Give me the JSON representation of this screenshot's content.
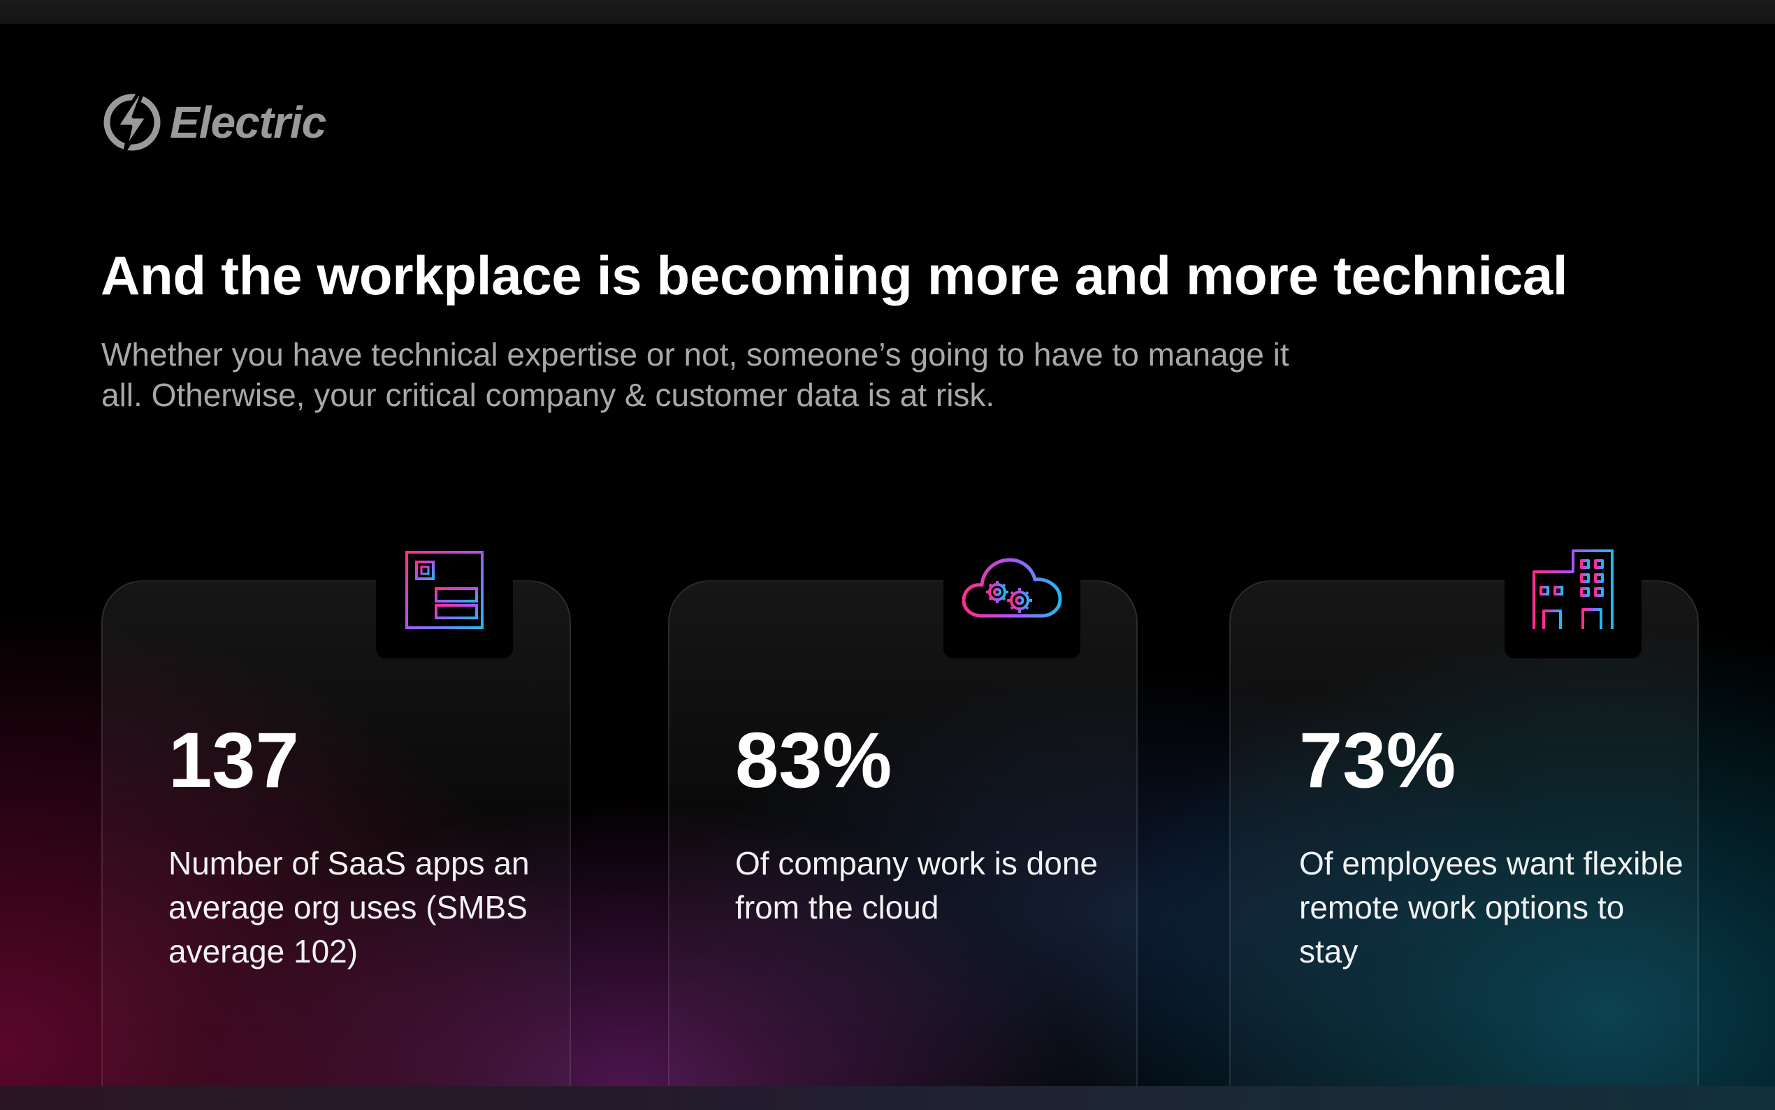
{
  "brand": {
    "name": "Electric",
    "logo_icon": "lightning-bolt-icon"
  },
  "headline": "And the workplace is becoming more and more technical",
  "subhead": "Whether you have technical expertise or not, someone’s going to have to manage it all. Otherwise, your critical company & customer data is at risk.",
  "stats": [
    {
      "value": "137",
      "description": "Number of SaaS apps an average org uses (SMBS average 102)",
      "icon": "app-window-icon"
    },
    {
      "value": "83%",
      "description": "Of company work is done from the cloud",
      "icon": "cloud-settings-icon"
    },
    {
      "value": "73%",
      "description": "Of employees want flexible remote work options to stay",
      "icon": "office-building-icon"
    }
  ],
  "colors": {
    "background": "#000000",
    "icon_gradient_start": "#ff2d8a",
    "icon_gradient_mid": "#a855f7",
    "icon_gradient_end": "#22b8f0",
    "logo_gray": "#9a9a9a"
  }
}
